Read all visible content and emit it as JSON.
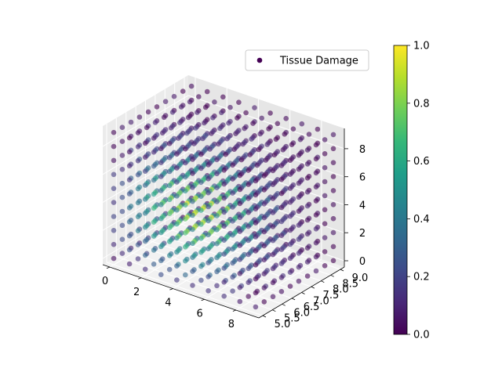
{
  "chart_data": {
    "type": "scatter",
    "projection": "3d",
    "title": "",
    "xlabel": "",
    "ylabel": "",
    "zlabel": "",
    "xlim": [
      -0.45,
      9.45
    ],
    "ylim": [
      4.8,
      9.2
    ],
    "zlim": [
      -0.45,
      9.45
    ],
    "x_ticks": [
      0,
      2,
      4,
      6,
      8
    ],
    "y_ticks": [
      5.0,
      5.5,
      6.0,
      6.5,
      7.0,
      7.5,
      8.0,
      8.5,
      9.0
    ],
    "z_ticks": [
      0,
      2,
      4,
      6,
      8
    ],
    "x_tick_labels": [
      "0",
      "2",
      "4",
      "6",
      "8"
    ],
    "y_tick_labels": [
      "5.0",
      "5.5",
      "6.0",
      "6.5",
      "7.0",
      "7.5",
      "8.0",
      "8.5",
      "9.0"
    ],
    "z_tick_labels": [
      "0",
      "2",
      "4",
      "6",
      "8"
    ],
    "grid": true,
    "colormap": "viridis",
    "color_range": [
      0.0,
      1.0
    ],
    "colorbar_ticks": [
      0.0,
      0.2,
      0.4,
      0.6,
      0.8,
      1.0
    ],
    "colorbar_tick_labels": [
      "0.0",
      "0.2",
      "0.4",
      "0.6",
      "0.8",
      "1.0"
    ],
    "legend": {
      "position": "top-right",
      "entries": [
        "Tissue Damage"
      ]
    },
    "series": [
      {
        "name": "Tissue Damage",
        "grid_points": {
          "x": [
            0,
            1,
            2,
            3,
            4,
            5,
            6,
            7,
            8,
            9
          ],
          "y": [
            5.0,
            5.44,
            5.89,
            6.33,
            6.78,
            7.22,
            7.67,
            8.11,
            8.56,
            9.0
          ],
          "z": [
            0,
            1,
            2,
            3,
            4,
            5,
            6,
            7,
            8,
            9
          ]
        },
        "value_model": "peak near x≈3.5, y≈6.5, z≈3.5 (value ≈ 1.0), falling off toward the cube edges (≈ 0.0)",
        "peak": {
          "x": 3.5,
          "y": 6.5,
          "z": 3.5,
          "value": 1.0
        },
        "marker_alpha": 0.6
      }
    ]
  }
}
